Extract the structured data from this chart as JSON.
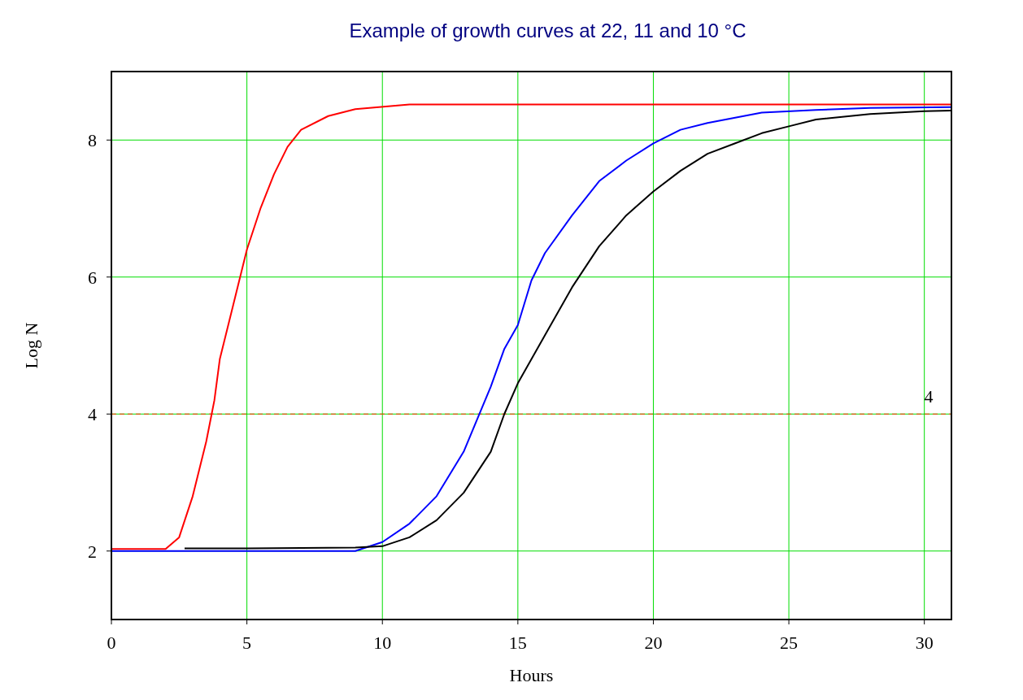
{
  "chart_data": {
    "type": "line",
    "title": "Example of growth curves at 22, 11 and 10 °C",
    "xlabel": "Hours",
    "ylabel": "Log N",
    "xlim": [
      0,
      31
    ],
    "ylim": [
      1,
      9
    ],
    "xticks": [
      0,
      5,
      10,
      15,
      20,
      25,
      30
    ],
    "yticks": [
      2,
      4,
      6,
      8
    ],
    "grid": true,
    "marker": "none",
    "ref_lines": [
      {
        "axis": "y",
        "value": 4,
        "label": "4",
        "color": "#ff3300",
        "line_style": "dashed"
      }
    ],
    "series": [
      {
        "color": "#ff0000",
        "x": [
          0,
          1,
          2,
          2.5,
          3,
          3.5,
          3.8,
          4,
          4.5,
          5,
          5.5,
          6,
          6.5,
          7,
          8,
          9,
          11,
          20,
          31
        ],
        "values": [
          2.03,
          2.03,
          2.03,
          2.2,
          2.8,
          3.6,
          4.2,
          4.8,
          5.6,
          6.4,
          7.0,
          7.5,
          7.9,
          8.15,
          8.35,
          8.45,
          8.52,
          8.52,
          8.52
        ]
      },
      {
        "color": "#0000ff",
        "x": [
          0,
          5,
          9,
          10,
          11,
          12,
          13,
          14,
          14.5,
          15,
          15.5,
          16,
          17,
          18,
          19,
          20,
          21,
          22,
          24,
          26,
          28,
          31
        ],
        "values": [
          2.0,
          2.0,
          2.0,
          2.13,
          2.4,
          2.8,
          3.45,
          4.4,
          4.95,
          5.3,
          5.95,
          6.35,
          6.9,
          7.4,
          7.7,
          7.95,
          8.15,
          8.25,
          8.4,
          8.44,
          8.47,
          8.48
        ]
      },
      {
        "color": "#000000",
        "x": [
          2.7,
          5,
          9,
          10,
          11,
          12,
          13,
          14,
          14.5,
          15,
          16,
          17,
          18,
          19,
          20,
          21,
          22,
          23,
          24,
          25,
          26,
          28,
          30,
          31
        ],
        "values": [
          2.04,
          2.04,
          2.05,
          2.07,
          2.2,
          2.45,
          2.85,
          3.45,
          4.0,
          4.45,
          5.15,
          5.85,
          6.45,
          6.9,
          7.25,
          7.55,
          7.8,
          7.95,
          8.1,
          8.2,
          8.3,
          8.38,
          8.42,
          8.43
        ]
      }
    ]
  }
}
